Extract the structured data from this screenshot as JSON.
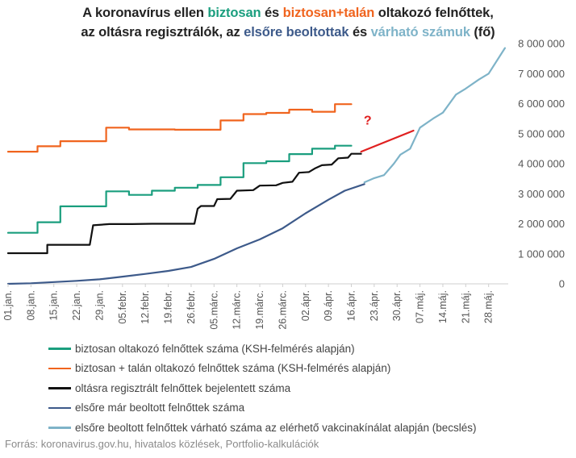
{
  "title": {
    "line1": [
      {
        "text": "A koronavírus ellen ",
        "color": "#222222"
      },
      {
        "text": "biztosan",
        "color": "#1a9e7e"
      },
      {
        "text": " és ",
        "color": "#222222"
      },
      {
        "text": "biztosan+talán",
        "color": "#f0641e"
      },
      {
        "text": " oltakozó felnőttek,",
        "color": "#222222"
      }
    ],
    "line2": [
      {
        "text": "az oltásra regisztrálók, az ",
        "color": "#222222"
      },
      {
        "text": "elsőre beoltottak",
        "color": "#3d5a8a"
      },
      {
        "text": " és ",
        "color": "#222222"
      },
      {
        "text": "várható számuk",
        "color": "#7eb3c8"
      },
      {
        "text": " (fő)",
        "color": "#222222"
      }
    ]
  },
  "source": "Forrás: koronavirus.gov.hu, hivatalos közlések, Portfolio-kalkulációk",
  "chart_data": {
    "type": "line",
    "y_axis": {
      "range": [
        0,
        8000000
      ],
      "ticks": [
        0,
        1000000,
        2000000,
        3000000,
        4000000,
        5000000,
        6000000,
        7000000,
        8000000
      ],
      "tick_labels": [
        "0",
        "1 000 000",
        "2 000 000",
        "3 000 000",
        "4 000 000",
        "5 000 000",
        "6 000 000",
        "7 000 000",
        "8 000 000"
      ],
      "position": "right"
    },
    "x_axis": {
      "start": "2021-01-01",
      "end": "2021-06-03",
      "tick_dates": [
        "2021-01-01",
        "2021-01-08",
        "2021-01-15",
        "2021-01-22",
        "2021-01-29",
        "2021-02-05",
        "2021-02-12",
        "2021-02-19",
        "2021-02-26",
        "2021-03-05",
        "2021-03-12",
        "2021-03-19",
        "2021-03-26",
        "2021-04-02",
        "2021-04-09",
        "2021-04-16",
        "2021-04-23",
        "2021-04-30",
        "2021-05-07",
        "2021-05-14",
        "2021-05-21",
        "2021-05-28"
      ],
      "tick_labels": [
        "01.jan.",
        "08.jan.",
        "15.jan.",
        "22.jan.",
        "29.jan.",
        "05.febr.",
        "12.febr.",
        "19.febr.",
        "26.febr.",
        "05.márc.",
        "12.márc.",
        "19.márc.",
        "26.márc.",
        "02.ápr.",
        "09.ápr.",
        "16.ápr.",
        "23.ápr.",
        "30.ápr.",
        "07.máj.",
        "14.máj.",
        "21.máj.",
        "28.máj."
      ]
    },
    "grid": false,
    "legend_placement": "bottom-left",
    "annotation": {
      "text": "?",
      "color": "#e02020",
      "date": "2021-04-21",
      "value": 5300000
    },
    "series": [
      {
        "name": "biztosan oltakozó felnőttek száma (KSH-felmérés alapján)",
        "color": "#1a9e7e",
        "points": [
          [
            "2021-01-01",
            1700000
          ],
          [
            "2021-01-10",
            1700000
          ],
          [
            "2021-01-10",
            2050000
          ],
          [
            "2021-01-17",
            2050000
          ],
          [
            "2021-01-17",
            2580000
          ],
          [
            "2021-01-31",
            2580000
          ],
          [
            "2021-01-31",
            3080000
          ],
          [
            "2021-02-07",
            3080000
          ],
          [
            "2021-02-07",
            2960000
          ],
          [
            "2021-02-14",
            2960000
          ],
          [
            "2021-02-14",
            3100000
          ],
          [
            "2021-02-21",
            3100000
          ],
          [
            "2021-02-21",
            3200000
          ],
          [
            "2021-02-28",
            3200000
          ],
          [
            "2021-02-28",
            3290000
          ],
          [
            "2021-03-07",
            3290000
          ],
          [
            "2021-03-07",
            3550000
          ],
          [
            "2021-03-14",
            3550000
          ],
          [
            "2021-03-14",
            4020000
          ],
          [
            "2021-03-21",
            4020000
          ],
          [
            "2021-03-21",
            4080000
          ],
          [
            "2021-03-28",
            4080000
          ],
          [
            "2021-03-28",
            4320000
          ],
          [
            "2021-04-04",
            4320000
          ],
          [
            "2021-04-04",
            4500000
          ],
          [
            "2021-04-11",
            4500000
          ],
          [
            "2021-04-11",
            4600000
          ],
          [
            "2021-04-16",
            4600000
          ]
        ]
      },
      {
        "name": "biztosan + talán oltakozó felnőttek száma (KSH-felmérés alapján)",
        "color": "#f0641e",
        "points": [
          [
            "2021-01-01",
            4400000
          ],
          [
            "2021-01-10",
            4400000
          ],
          [
            "2021-01-10",
            4580000
          ],
          [
            "2021-01-17",
            4580000
          ],
          [
            "2021-01-17",
            4750000
          ],
          [
            "2021-01-31",
            4750000
          ],
          [
            "2021-01-31",
            5200000
          ],
          [
            "2021-02-07",
            5200000
          ],
          [
            "2021-02-07",
            5140000
          ],
          [
            "2021-02-21",
            5140000
          ],
          [
            "2021-02-21",
            5130000
          ],
          [
            "2021-03-07",
            5130000
          ],
          [
            "2021-03-07",
            5440000
          ],
          [
            "2021-03-14",
            5440000
          ],
          [
            "2021-03-14",
            5650000
          ],
          [
            "2021-03-21",
            5650000
          ],
          [
            "2021-03-21",
            5690000
          ],
          [
            "2021-03-28",
            5690000
          ],
          [
            "2021-03-28",
            5800000
          ],
          [
            "2021-04-04",
            5800000
          ],
          [
            "2021-04-04",
            5730000
          ],
          [
            "2021-04-11",
            5730000
          ],
          [
            "2021-04-11",
            5980000
          ],
          [
            "2021-04-16",
            5980000
          ]
        ]
      },
      {
        "name": "oltásra regisztrált felnőttek bejelentett száma",
        "color": "#111111",
        "points": [
          [
            "2021-01-01",
            1020000
          ],
          [
            "2021-01-13",
            1020000
          ],
          [
            "2021-01-13",
            1300000
          ],
          [
            "2021-01-26",
            1300000
          ],
          [
            "2021-01-27",
            1950000
          ],
          [
            "2021-02-01",
            1990000
          ],
          [
            "2021-02-08",
            1990000
          ],
          [
            "2021-02-14",
            2000000
          ],
          [
            "2021-02-27",
            2000000
          ],
          [
            "2021-02-28",
            2500000
          ],
          [
            "2021-03-01",
            2590000
          ],
          [
            "2021-03-05",
            2590000
          ],
          [
            "2021-03-06",
            2820000
          ],
          [
            "2021-03-10",
            2830000
          ],
          [
            "2021-03-12",
            3100000
          ],
          [
            "2021-03-17",
            3120000
          ],
          [
            "2021-03-19",
            3270000
          ],
          [
            "2021-03-24",
            3280000
          ],
          [
            "2021-03-26",
            3360000
          ],
          [
            "2021-03-29",
            3400000
          ],
          [
            "2021-03-31",
            3700000
          ],
          [
            "2021-04-03",
            3720000
          ],
          [
            "2021-04-05",
            3850000
          ],
          [
            "2021-04-07",
            3950000
          ],
          [
            "2021-04-10",
            3970000
          ],
          [
            "2021-04-12",
            4180000
          ],
          [
            "2021-04-15",
            4200000
          ],
          [
            "2021-04-16",
            4330000
          ],
          [
            "2021-04-19",
            4330000
          ]
        ]
      },
      {
        "name": "elsőre már beoltott felnőttek száma",
        "color": "#3d5a8a",
        "points": [
          [
            "2021-01-01",
            0
          ],
          [
            "2021-01-08",
            20000
          ],
          [
            "2021-01-15",
            60000
          ],
          [
            "2021-01-22",
            100000
          ],
          [
            "2021-01-29",
            150000
          ],
          [
            "2021-02-05",
            240000
          ],
          [
            "2021-02-12",
            330000
          ],
          [
            "2021-02-19",
            430000
          ],
          [
            "2021-02-26",
            560000
          ],
          [
            "2021-03-05",
            830000
          ],
          [
            "2021-03-12",
            1180000
          ],
          [
            "2021-03-19",
            1480000
          ],
          [
            "2021-03-26",
            1850000
          ],
          [
            "2021-04-02",
            2350000
          ],
          [
            "2021-04-09",
            2800000
          ],
          [
            "2021-04-14",
            3100000
          ],
          [
            "2021-04-20",
            3320000
          ]
        ]
      },
      {
        "name": "elsőre beoltott felnőttek várható száma az elérhető vakcinakínálat alapján (becslés)",
        "color": "#7eb3c8",
        "points": [
          [
            "2021-04-20",
            3380000
          ],
          [
            "2021-04-23",
            3520000
          ],
          [
            "2021-04-26",
            3620000
          ],
          [
            "2021-04-29",
            4000000
          ],
          [
            "2021-05-01",
            4300000
          ],
          [
            "2021-05-04",
            4500000
          ],
          [
            "2021-05-07",
            5200000
          ],
          [
            "2021-05-11",
            5500000
          ],
          [
            "2021-05-14",
            5700000
          ],
          [
            "2021-05-18",
            6300000
          ],
          [
            "2021-05-21",
            6500000
          ],
          [
            "2021-05-25",
            6800000
          ],
          [
            "2021-05-28",
            7000000
          ],
          [
            "2021-06-02",
            7850000
          ]
        ]
      },
      {
        "color": "#e02020",
        "points": [
          [
            "2021-04-19",
            4400000
          ],
          [
            "2021-05-05",
            5100000
          ]
        ]
      }
    ]
  },
  "legend_map": [
    0,
    1,
    2,
    3,
    4
  ]
}
